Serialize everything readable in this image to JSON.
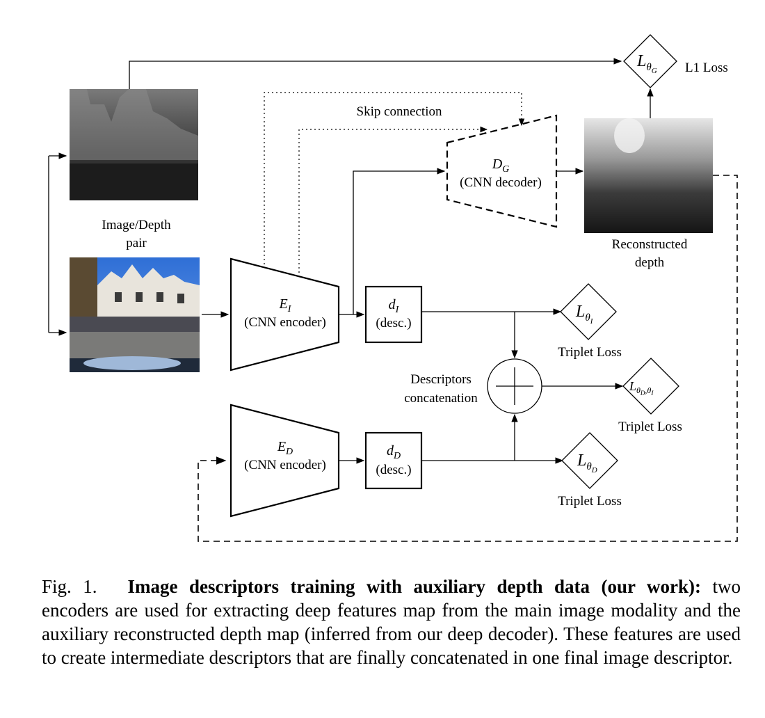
{
  "labels": {
    "image_depth_pair_1": "Image/Depth",
    "image_depth_pair_2": "pair",
    "skip_connection": "Skip connection",
    "l1_loss": "L1 Loss",
    "reconstructed_depth_1": "Reconstructed",
    "reconstructed_depth_2": "depth",
    "decoder_name": "D",
    "decoder_sub": "G",
    "decoder_desc": "(CNN decoder)",
    "encoder_i_name": "E",
    "encoder_i_sub": "I",
    "encoder_i_desc": "(CNN encoder)",
    "encoder_d_name": "E",
    "encoder_d_sub": "D",
    "encoder_d_desc": "(CNN encoder)",
    "desc_i_name": "d",
    "desc_i_sub": "I",
    "desc_i_desc": "(desc.)",
    "desc_d_name": "d",
    "desc_d_sub": "D",
    "desc_d_desc": "(desc.)",
    "concat_1": "Descriptors",
    "concat_2": "concatenation",
    "loss_g_L": "L",
    "loss_g_sub": "θ",
    "loss_g_subsub": "G",
    "loss_i_L": "L",
    "loss_i_sub": "θ",
    "loss_i_subsub": "I",
    "loss_di_L": "L",
    "loss_di_sub": "θ",
    "loss_di_subsub_d": "D",
    "loss_di_comma": ",θ",
    "loss_di_subsub_i": "I",
    "loss_d_L": "L",
    "loss_d_sub": "θ",
    "loss_d_subsub": "D",
    "triplet_loss_i": "Triplet Loss",
    "triplet_loss_di": "Triplet Loss",
    "triplet_loss_d": "Triplet Loss"
  },
  "caption": {
    "fig_num": "Fig. 1.",
    "title": "Image descriptors training with auxiliary depth data (our work):",
    "body": "two encoders are used for extracting deep features map from the main image modality and the auxiliary reconstructed depth map (inferred from our deep decoder). These features are used to create intermediate descriptors that are finally concatenated in one final image descriptor."
  }
}
